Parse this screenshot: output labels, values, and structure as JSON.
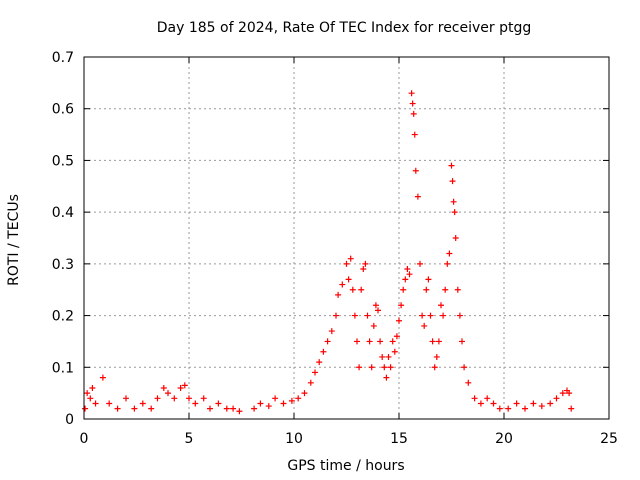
{
  "chart_data": {
    "type": "scatter",
    "title": "Day 185 of 2024, Rate Of TEC Index for receiver ptgg",
    "xlabel": "GPS time / hours",
    "ylabel": "ROTI / TECUs",
    "xlim": [
      0,
      25
    ],
    "ylim": [
      0,
      0.7
    ],
    "xticks": [
      "0",
      "5",
      "10",
      "15",
      "20",
      "25"
    ],
    "yticks": [
      "0",
      "0.1",
      "0.2",
      "0.3",
      "0.4",
      "0.5",
      "0.6",
      "0.7"
    ],
    "grid": true,
    "marker": "+",
    "marker_color": "#ff0000",
    "series": [
      {
        "x": [
          0.05,
          0.15,
          0.3,
          0.4,
          0.55,
          0.9,
          1.2,
          1.6,
          2.0,
          2.4,
          2.8,
          3.2,
          3.5,
          3.8,
          4.0,
          4.3,
          4.6,
          4.8,
          5.0,
          5.3,
          5.7,
          6.0,
          6.4,
          6.8,
          7.1,
          7.4,
          8.1,
          8.4,
          8.8,
          9.1,
          9.5,
          9.9,
          10.2,
          10.5,
          10.8,
          11.0,
          11.2,
          11.4,
          11.6,
          11.8,
          12.0,
          12.1,
          12.3,
          12.5,
          12.6,
          12.7,
          12.8,
          12.9,
          13.0,
          13.1,
          13.2,
          13.3,
          13.4,
          13.5,
          13.6,
          13.7,
          13.8,
          13.9,
          14.0,
          14.1,
          14.2,
          14.3,
          14.4,
          14.5,
          14.6,
          14.7,
          14.8,
          14.9,
          15.0,
          15.1,
          15.2,
          15.3,
          15.4,
          15.5,
          15.6,
          15.65,
          15.7,
          15.75,
          15.8,
          15.9,
          16.0,
          16.1,
          16.2,
          16.3,
          16.4,
          16.5,
          16.6,
          16.7,
          16.8,
          16.9,
          17.0,
          17.1,
          17.2,
          17.3,
          17.4,
          17.5,
          17.55,
          17.6,
          17.65,
          17.7,
          17.8,
          17.9,
          18.0,
          18.1,
          18.3,
          18.6,
          18.9,
          19.2,
          19.5,
          19.8,
          20.2,
          20.6,
          21.0,
          21.4,
          21.8,
          22.2,
          22.5,
          22.8,
          23.0,
          23.1,
          23.2
        ],
        "y": [
          0.02,
          0.05,
          0.04,
          0.06,
          0.03,
          0.08,
          0.03,
          0.02,
          0.04,
          0.02,
          0.03,
          0.02,
          0.04,
          0.06,
          0.05,
          0.04,
          0.06,
          0.065,
          0.04,
          0.03,
          0.04,
          0.02,
          0.03,
          0.02,
          0.02,
          0.015,
          0.02,
          0.03,
          0.025,
          0.04,
          0.03,
          0.035,
          0.04,
          0.05,
          0.07,
          0.09,
          0.11,
          0.13,
          0.15,
          0.17,
          0.2,
          0.24,
          0.26,
          0.3,
          0.27,
          0.31,
          0.25,
          0.2,
          0.15,
          0.1,
          0.25,
          0.29,
          0.3,
          0.2,
          0.15,
          0.1,
          0.18,
          0.22,
          0.21,
          0.15,
          0.12,
          0.1,
          0.08,
          0.12,
          0.1,
          0.15,
          0.13,
          0.16,
          0.19,
          0.22,
          0.25,
          0.27,
          0.29,
          0.28,
          0.63,
          0.61,
          0.59,
          0.55,
          0.48,
          0.43,
          0.3,
          0.2,
          0.18,
          0.25,
          0.27,
          0.2,
          0.15,
          0.1,
          0.12,
          0.15,
          0.22,
          0.2,
          0.25,
          0.3,
          0.32,
          0.49,
          0.46,
          0.42,
          0.4,
          0.35,
          0.25,
          0.2,
          0.15,
          0.1,
          0.07,
          0.04,
          0.03,
          0.04,
          0.03,
          0.02,
          0.02,
          0.03,
          0.02,
          0.03,
          0.025,
          0.03,
          0.04,
          0.05,
          0.055,
          0.05,
          0.02
        ]
      }
    ]
  }
}
